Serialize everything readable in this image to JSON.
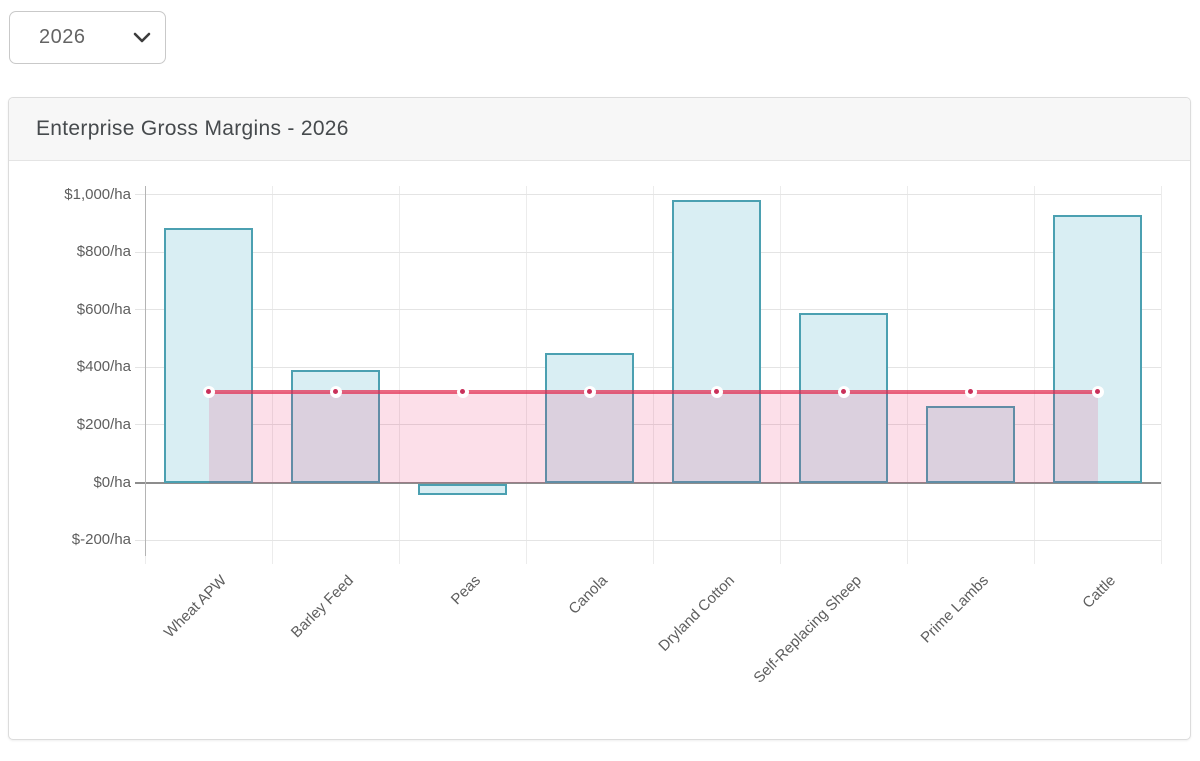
{
  "year_selector": {
    "value": "2026",
    "icon": "chevron-down"
  },
  "card": {
    "title": "Enterprise Gross Margins - 2026"
  },
  "chart_data": {
    "type": "bar",
    "title": "Enterprise Gross Margins - 2026",
    "categories": [
      "Wheat APW",
      "Barley Feed",
      "Peas",
      "Canola",
      "Dryland Cotton",
      "Self-Replacing Sheep",
      "Prime Lambs",
      "Cattle"
    ],
    "series": [
      {
        "type": "bar",
        "unit": "$/ha",
        "values": [
          885,
          390,
          -40,
          450,
          980,
          590,
          265,
          930
        ]
      },
      {
        "type": "line",
        "unit": "$/ha",
        "values": [
          315,
          315,
          315,
          315,
          315,
          315,
          315,
          315
        ],
        "fill_to_zero": true,
        "point_markers": true
      }
    ],
    "yticks": [
      {
        "value": 1000,
        "label": "$1,000/ha"
      },
      {
        "value": 800,
        "label": "$800/ha"
      },
      {
        "value": 600,
        "label": "$600/ha"
      },
      {
        "value": 400,
        "label": "$400/ha"
      },
      {
        "value": 200,
        "label": "$200/ha"
      },
      {
        "value": 0,
        "label": "$0/ha"
      },
      {
        "value": -200,
        "label": "$-200/ha"
      }
    ],
    "ylim": [
      -255,
      1030
    ],
    "x_label_rotation": -45,
    "grid": true,
    "legend_position": "none",
    "colors": {
      "bar_fill": "#d9eef3",
      "bar_border": "#4ba0b1",
      "line": "#e22c50",
      "line_alpha": 0.72,
      "area": "#e91e63",
      "area_alpha": 0.14,
      "marker_dot": "#c9305a",
      "marker_ring": "#ffffff",
      "grid_h": "#e4e4e4",
      "grid_v": "#ececec",
      "zero_line": "#8d8d8d",
      "axis_line": "#b4b4b4",
      "tick_text": "#5e5e5e"
    }
  }
}
